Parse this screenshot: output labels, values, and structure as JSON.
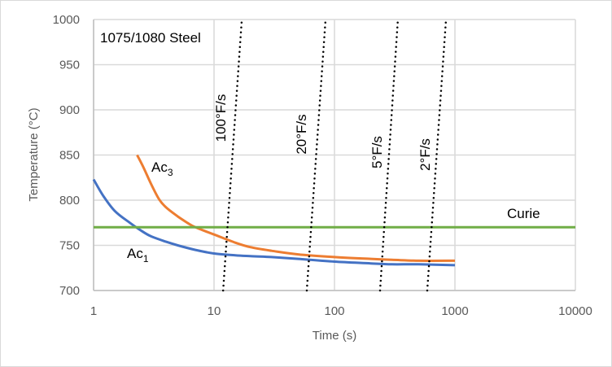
{
  "chart_data": {
    "type": "line",
    "title": "",
    "annotation_title": "1075/1080 Steel",
    "xlabel": "Time (s)",
    "ylabel": "Temperature (°C)",
    "xscale": "log",
    "xlim": [
      1,
      10000
    ],
    "ylim": [
      700,
      1000
    ],
    "xticks": [
      "1",
      "10",
      "100",
      "1000",
      "10000"
    ],
    "yticks": [
      "700",
      "750",
      "800",
      "850",
      "900",
      "950",
      "1000"
    ],
    "xtick_values": [
      1,
      10,
      100,
      1000,
      10000
    ],
    "ytick_values": [
      700,
      750,
      800,
      850,
      900,
      950,
      1000
    ],
    "grid": true,
    "legend": "none",
    "series": [
      {
        "name": "Ac1",
        "label_main": "Ac",
        "label_sub": "1",
        "color": "#4472c4",
        "style": "solid",
        "x": [
          1,
          1.2,
          1.5,
          2,
          2.5,
          3,
          4,
          5,
          7,
          10,
          15,
          20,
          30,
          50,
          100,
          200,
          300,
          500,
          1000
        ],
        "y": [
          823,
          805,
          788,
          775,
          766,
          760,
          754,
          750,
          745,
          741,
          739,
          738,
          737,
          735,
          732,
          730,
          729,
          729,
          728
        ]
      },
      {
        "name": "Ac3",
        "label_main": "Ac",
        "label_sub": "3",
        "color": "#ed7d31",
        "style": "solid",
        "x": [
          2.3,
          2.6,
          3,
          3.5,
          4,
          5,
          6,
          7,
          10,
          15,
          20,
          30,
          50,
          100,
          200,
          300,
          500,
          1000
        ],
        "y": [
          850,
          836,
          818,
          801,
          792,
          782,
          775,
          770,
          762,
          753,
          748,
          744,
          740,
          737,
          735,
          734,
          733,
          733
        ]
      },
      {
        "name": "Curie",
        "label": "Curie",
        "color": "#70ad47",
        "style": "solid",
        "x": [
          1,
          10000
        ],
        "y": [
          770,
          770
        ]
      },
      {
        "name": "100°F/s",
        "label": "100°F/s",
        "color": "#000000",
        "style": "dotted",
        "x": [
          11.9,
          17.0
        ],
        "y": [
          700,
          1000
        ]
      },
      {
        "name": "20°F/s",
        "label": "20°F/s",
        "color": "#000000",
        "style": "dotted",
        "x": [
          58.9,
          84.3
        ],
        "y": [
          700,
          1000
        ]
      },
      {
        "name": "5°F/s",
        "label": "5°F/s",
        "color": "#000000",
        "style": "dotted",
        "x": [
          239,
          336
        ],
        "y": [
          700,
          1000
        ]
      },
      {
        "name": "2°F/s",
        "label": "2°F/s",
        "color": "#000000",
        "style": "dotted",
        "x": [
          589,
          843
        ],
        "y": [
          700,
          1000
        ]
      }
    ]
  }
}
